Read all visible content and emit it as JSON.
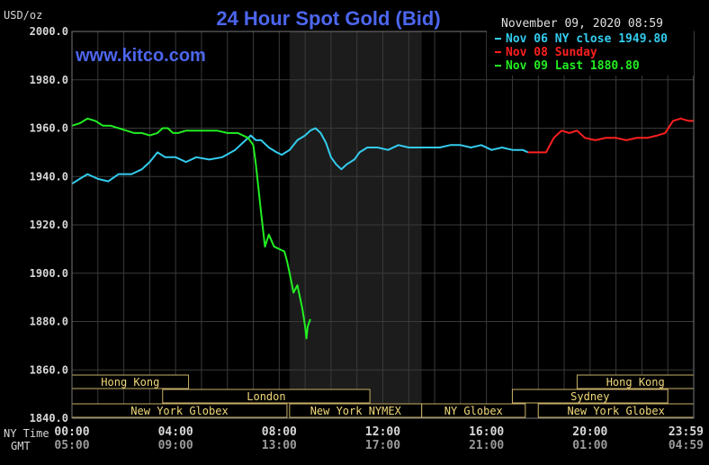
{
  "chart_data": {
    "type": "line",
    "title": "24 Hour Spot Gold (Bid)",
    "unit_label": "USD/oz",
    "watermark": "www.kitco.com",
    "timestamp": "November 09, 2020 08:59",
    "ylim": [
      1840,
      2000
    ],
    "y_ticks": [
      "2000.0",
      "1980.0",
      "1960.0",
      "1940.0",
      "1920.0",
      "1900.0",
      "1880.0",
      "1860.0",
      "1840.0"
    ],
    "x_row_labels": {
      "ny": "NY Time",
      "gmt": "GMT"
    },
    "x_ticks_ny": [
      "00:00",
      "04:00",
      "08:00",
      "12:00",
      "16:00",
      "20:00",
      "23:59"
    ],
    "x_ticks_gmt": [
      "05:00",
      "09:00",
      "13:00",
      "17:00",
      "21:00",
      "01:00",
      "04:59"
    ],
    "x_tick_hours": [
      0,
      4,
      8,
      12,
      16,
      20,
      23.983
    ],
    "xlim_hours": [
      0,
      24
    ],
    "grid": true,
    "legend_position": "top-right",
    "shaded_band_hours": [
      8.4,
      13.5
    ],
    "series": [
      {
        "name": "Nov 06 NY close 1949.80",
        "color": "#33ccee",
        "points": [
          [
            0,
            1937
          ],
          [
            0.3,
            1939
          ],
          [
            0.6,
            1941
          ],
          [
            1.0,
            1939
          ],
          [
            1.4,
            1938
          ],
          [
            1.8,
            1941
          ],
          [
            2.3,
            1941
          ],
          [
            2.7,
            1943
          ],
          [
            3.0,
            1946
          ],
          [
            3.3,
            1950
          ],
          [
            3.6,
            1948
          ],
          [
            4.0,
            1948
          ],
          [
            4.4,
            1946
          ],
          [
            4.8,
            1948
          ],
          [
            5.3,
            1947
          ],
          [
            5.8,
            1948
          ],
          [
            6.3,
            1951
          ],
          [
            6.6,
            1954
          ],
          [
            6.9,
            1957
          ],
          [
            7.1,
            1955
          ],
          [
            7.3,
            1955
          ],
          [
            7.6,
            1952
          ],
          [
            7.9,
            1950
          ],
          [
            8.1,
            1949
          ],
          [
            8.4,
            1951
          ],
          [
            8.7,
            1955
          ],
          [
            9.0,
            1957
          ],
          [
            9.2,
            1959
          ],
          [
            9.4,
            1960
          ],
          [
            9.6,
            1958
          ],
          [
            9.8,
            1954
          ],
          [
            10.0,
            1948
          ],
          [
            10.2,
            1945
          ],
          [
            10.4,
            1943
          ],
          [
            10.6,
            1945
          ],
          [
            10.9,
            1947
          ],
          [
            11.1,
            1950
          ],
          [
            11.4,
            1952
          ],
          [
            11.8,
            1952
          ],
          [
            12.2,
            1951
          ],
          [
            12.6,
            1953
          ],
          [
            13.0,
            1952
          ],
          [
            13.4,
            1952
          ],
          [
            13.8,
            1952
          ],
          [
            14.2,
            1952
          ],
          [
            14.6,
            1953
          ],
          [
            15.0,
            1953
          ],
          [
            15.4,
            1952
          ],
          [
            15.8,
            1953
          ],
          [
            16.2,
            1951
          ],
          [
            16.6,
            1952
          ],
          [
            17.0,
            1951
          ],
          [
            17.4,
            1951
          ],
          [
            17.6,
            1950
          ]
        ]
      },
      {
        "name": "Nov 08 Sunday",
        "color": "#ff1f1f",
        "points": [
          [
            17.6,
            1950
          ],
          [
            18.3,
            1950
          ],
          [
            18.6,
            1956
          ],
          [
            18.9,
            1959
          ],
          [
            19.2,
            1958
          ],
          [
            19.5,
            1959
          ],
          [
            19.8,
            1956
          ],
          [
            20.2,
            1955
          ],
          [
            20.6,
            1956
          ],
          [
            21.0,
            1956
          ],
          [
            21.4,
            1955
          ],
          [
            21.8,
            1956
          ],
          [
            22.2,
            1956
          ],
          [
            22.6,
            1957
          ],
          [
            22.9,
            1958
          ],
          [
            23.2,
            1963
          ],
          [
            23.5,
            1964
          ],
          [
            23.8,
            1963
          ],
          [
            24.0,
            1963
          ]
        ]
      },
      {
        "name": "Nov 09 Last 1880.80",
        "color": "#22ee22",
        "points": [
          [
            0,
            1961
          ],
          [
            0.3,
            1962
          ],
          [
            0.6,
            1964
          ],
          [
            0.9,
            1963
          ],
          [
            1.2,
            1961
          ],
          [
            1.5,
            1961
          ],
          [
            1.8,
            1960
          ],
          [
            2.1,
            1959
          ],
          [
            2.4,
            1958
          ],
          [
            2.7,
            1958
          ],
          [
            3.0,
            1957
          ],
          [
            3.3,
            1958
          ],
          [
            3.5,
            1960
          ],
          [
            3.7,
            1960
          ],
          [
            3.9,
            1958
          ],
          [
            4.1,
            1958
          ],
          [
            4.4,
            1959
          ],
          [
            4.8,
            1959
          ],
          [
            5.2,
            1959
          ],
          [
            5.6,
            1959
          ],
          [
            6.0,
            1958
          ],
          [
            6.4,
            1958
          ],
          [
            6.8,
            1956
          ],
          [
            7.0,
            1953
          ],
          [
            7.1,
            1945
          ],
          [
            7.2,
            1935
          ],
          [
            7.3,
            1925
          ],
          [
            7.45,
            1911
          ],
          [
            7.6,
            1916
          ],
          [
            7.8,
            1911
          ],
          [
            8.0,
            1910
          ],
          [
            8.2,
            1909
          ],
          [
            8.3,
            1905
          ],
          [
            8.4,
            1900
          ],
          [
            8.55,
            1892
          ],
          [
            8.7,
            1895
          ],
          [
            8.8,
            1890
          ],
          [
            8.9,
            1885
          ],
          [
            9.0,
            1878
          ],
          [
            9.05,
            1873
          ],
          [
            9.1,
            1878
          ],
          [
            9.2,
            1881
          ]
        ]
      }
    ],
    "sessions": [
      {
        "name": "Hong Kong",
        "row": 0,
        "start": 0,
        "end": 4.5
      },
      {
        "name": "Hong Kong",
        "row": 0,
        "start": 19.5,
        "end": 24
      },
      {
        "name": "London",
        "row": 1,
        "start": 3.5,
        "end": 11.5
      },
      {
        "name": "Sydney",
        "row": 1,
        "start": 17.0,
        "end": 23.0
      },
      {
        "name": "New York Globex",
        "row": 2,
        "start": 0,
        "end": 8.3
      },
      {
        "name": "New York NYMEX",
        "row": 2,
        "start": 8.4,
        "end": 13.5
      },
      {
        "name": "NY Globex",
        "row": 2,
        "start": 13.5,
        "end": 17.5
      },
      {
        "name": "New York Globex",
        "row": 2,
        "start": 18.0,
        "end": 24
      }
    ],
    "colors": {
      "title": "#4d66ee",
      "watermark": "#4d66ee",
      "axis_text": "#d8d8d8",
      "grid": "#3a3a3a",
      "band": "#1c1c1c",
      "session_border": "#c8b068",
      "session_text": "#f0d878",
      "session_fill": "#000000"
    }
  }
}
